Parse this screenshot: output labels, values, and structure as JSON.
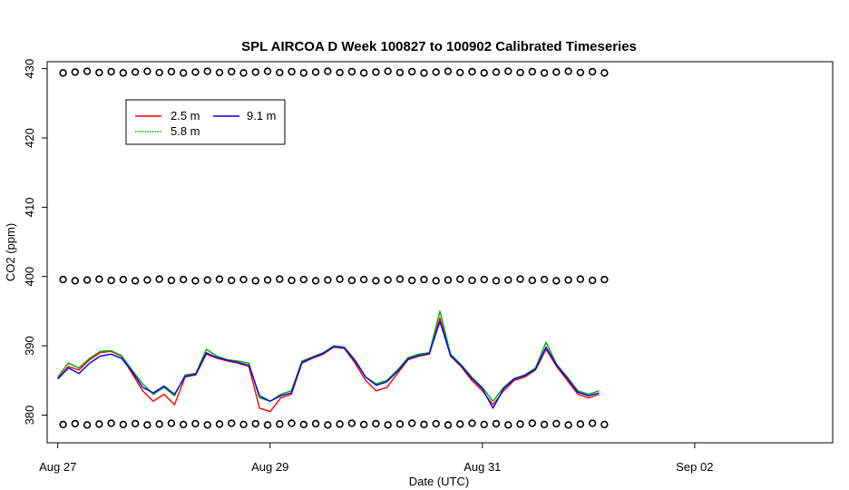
{
  "chart_data": {
    "type": "line",
    "title": "SPL AIRCOA D  Week 100827 to 100902  Calibrated Timeseries",
    "xlabel": "Date (UTC)",
    "ylabel": "CO2 (ppm)",
    "x_unit": "days",
    "xlim": [
      -0.1,
      7.3
    ],
    "ylim": [
      376.0,
      431.0
    ],
    "x_ticks": [
      0,
      2,
      4,
      6
    ],
    "x_tick_labels": [
      "Aug 27",
      "Aug 29",
      "Aug 31",
      "Sep 02"
    ],
    "y_ticks": [
      380,
      390,
      400,
      410,
      420,
      430
    ],
    "y_tick_labels": [
      "380",
      "390",
      "400",
      "410",
      "420",
      "430"
    ],
    "grid": false,
    "legend": {
      "placement": "top-left",
      "entries": [
        {
          "label": "2.5 m",
          "color": "#ff0000"
        },
        {
          "label": "5.8 m",
          "color": "#00aa00"
        },
        {
          "label": "9.1 m",
          "color": "#0000ff"
        }
      ]
    },
    "series": [
      {
        "name": "2.5 m",
        "color": "#ff0000",
        "x": [
          0.0,
          0.1,
          0.2,
          0.3,
          0.4,
          0.5,
          0.6,
          0.7,
          0.8,
          0.9,
          1.0,
          1.1,
          1.2,
          1.3,
          1.4,
          1.5,
          1.6,
          1.7,
          1.8,
          1.9,
          2.0,
          2.1,
          2.2,
          2.3,
          2.4,
          2.5,
          2.6,
          2.7,
          2.8,
          2.9,
          3.0,
          3.1,
          3.2,
          3.3,
          3.4,
          3.5,
          3.6,
          3.7,
          3.8,
          3.9,
          4.0,
          4.1,
          4.2,
          4.3,
          4.4,
          4.5,
          4.6,
          4.7,
          4.8,
          4.9,
          5.0,
          5.1
        ],
        "values": [
          385.3,
          387.0,
          386.5,
          388.0,
          389.0,
          389.2,
          388.5,
          386.0,
          383.5,
          382.0,
          383.0,
          381.5,
          385.5,
          385.8,
          388.8,
          388.2,
          387.8,
          387.5,
          387.0,
          381.0,
          380.5,
          382.5,
          383.0,
          387.5,
          388.2,
          388.8,
          389.8,
          389.6,
          387.5,
          385.0,
          383.5,
          384.0,
          386.0,
          388.0,
          388.5,
          388.8,
          394.0,
          388.5,
          387.0,
          385.0,
          383.5,
          381.5,
          383.5,
          385.0,
          385.5,
          386.5,
          389.5,
          387.0,
          385.0,
          383.0,
          382.5,
          383.0
        ]
      },
      {
        "name": "5.8 m",
        "color": "#00aa00",
        "x": [
          0.0,
          0.1,
          0.2,
          0.3,
          0.4,
          0.5,
          0.6,
          0.7,
          0.8,
          0.9,
          1.0,
          1.1,
          1.2,
          1.3,
          1.4,
          1.5,
          1.6,
          1.7,
          1.8,
          1.9,
          2.0,
          2.1,
          2.2,
          2.3,
          2.4,
          2.5,
          2.6,
          2.7,
          2.8,
          2.9,
          3.0,
          3.1,
          3.2,
          3.3,
          3.4,
          3.5,
          3.6,
          3.7,
          3.8,
          3.9,
          4.0,
          4.1,
          4.2,
          4.3,
          4.4,
          4.5,
          4.6,
          4.7,
          4.8,
          4.9,
          5.0,
          5.1
        ],
        "values": [
          385.5,
          387.5,
          386.8,
          388.2,
          389.2,
          389.3,
          388.6,
          386.5,
          384.5,
          383.0,
          384.0,
          382.8,
          385.8,
          386.0,
          389.5,
          388.5,
          388.0,
          387.8,
          387.5,
          382.5,
          382.0,
          383.0,
          383.5,
          387.8,
          388.4,
          389.0,
          390.0,
          389.8,
          388.0,
          385.5,
          384.5,
          385.0,
          386.5,
          388.3,
          388.8,
          389.0,
          395.0,
          388.8,
          387.3,
          385.5,
          384.0,
          382.0,
          384.0,
          385.3,
          385.8,
          386.8,
          390.5,
          387.3,
          385.5,
          383.5,
          383.0,
          383.5
        ]
      },
      {
        "name": "9.1 m",
        "color": "#0000ff",
        "x": [
          0.0,
          0.1,
          0.2,
          0.3,
          0.4,
          0.5,
          0.6,
          0.7,
          0.8,
          0.9,
          1.0,
          1.1,
          1.2,
          1.3,
          1.4,
          1.5,
          1.6,
          1.7,
          1.8,
          1.9,
          2.0,
          2.1,
          2.2,
          2.3,
          2.4,
          2.5,
          2.6,
          2.7,
          2.8,
          2.9,
          3.0,
          3.1,
          3.2,
          3.3,
          3.4,
          3.5,
          3.6,
          3.7,
          3.8,
          3.9,
          4.0,
          4.1,
          4.2,
          4.3,
          4.4,
          4.5,
          4.6,
          4.7,
          4.8,
          4.9,
          5.0,
          5.1
        ],
        "values": [
          385.2,
          386.8,
          386.0,
          387.5,
          388.5,
          388.8,
          388.2,
          386.3,
          384.0,
          383.2,
          384.2,
          383.0,
          385.6,
          385.9,
          389.0,
          388.3,
          387.9,
          387.6,
          387.2,
          382.8,
          382.0,
          382.8,
          383.2,
          387.6,
          388.3,
          388.9,
          389.9,
          389.7,
          387.8,
          385.5,
          384.3,
          384.8,
          386.3,
          388.1,
          388.6,
          388.9,
          393.5,
          388.6,
          387.1,
          385.3,
          383.8,
          381.0,
          383.8,
          385.2,
          385.7,
          386.6,
          389.8,
          387.2,
          385.3,
          383.3,
          382.8,
          383.2
        ]
      }
    ],
    "calibration_markers": {
      "marker": "open-circle",
      "levels": [
        429.5,
        399.5,
        378.7
      ],
      "x_start": 0.05,
      "x_end": 5.15,
      "count_per_level": 46
    }
  }
}
